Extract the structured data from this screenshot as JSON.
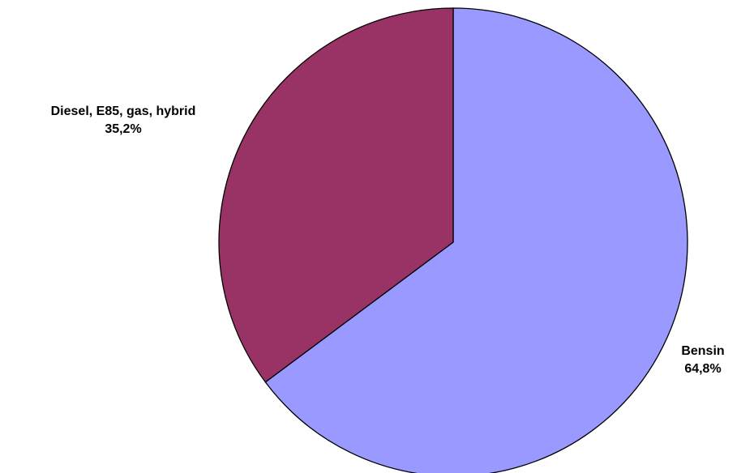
{
  "chart_data": {
    "type": "pie",
    "title": "",
    "slices": [
      {
        "label": "Bensin",
        "value": 64.8,
        "value_label": "64,8%",
        "color": "#9999ff"
      },
      {
        "label": "Diesel, E85, gas, hybrid",
        "value": 35.2,
        "value_label": "35,2%",
        "color": "#993366"
      }
    ],
    "start": "12 o'clock",
    "direction": "clockwise",
    "legend": "none"
  }
}
